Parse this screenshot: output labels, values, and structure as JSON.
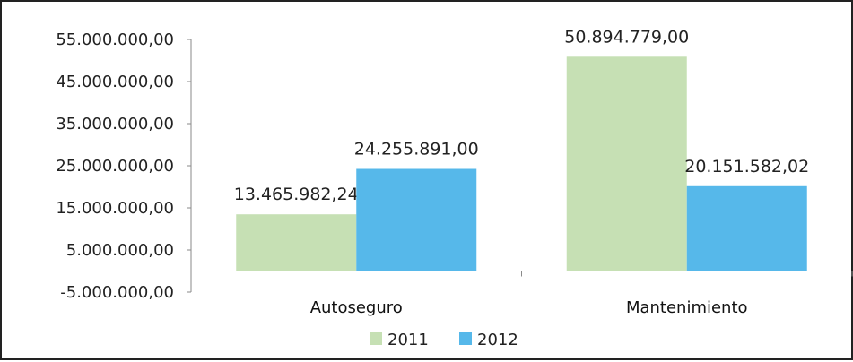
{
  "chart_data": {
    "type": "bar",
    "title": "",
    "xlabel": "",
    "ylabel": "",
    "categories": [
      "Autoseguro",
      "Mantenimiento"
    ],
    "series": [
      {
        "name": "2011",
        "color": "#c6e0b4",
        "values": [
          13465982.24,
          50894779.0
        ],
        "labels": [
          "13.465.982,24",
          "50.894.779,00"
        ]
      },
      {
        "name": "2012",
        "color": "#56b8ea",
        "values": [
          24255891.0,
          20151582.02
        ],
        "labels": [
          "24.255.891,00",
          "20.151.582,02"
        ]
      }
    ],
    "ylim": [
      -5000000,
      55000000
    ],
    "yticks": [
      {
        "value": 55000000,
        "label": "55.000.000,00"
      },
      {
        "value": 45000000,
        "label": "45.000.000,00"
      },
      {
        "value": 35000000,
        "label": "35.000.000,00"
      },
      {
        "value": 25000000,
        "label": "25.000.000,00"
      },
      {
        "value": 15000000,
        "label": "15.000.000,00"
      },
      {
        "value": 5000000,
        "label": "5.000.000,00"
      },
      {
        "value": -5000000,
        "label": "-5.000.000,00"
      }
    ],
    "grid": false,
    "legend_position": "bottom"
  }
}
